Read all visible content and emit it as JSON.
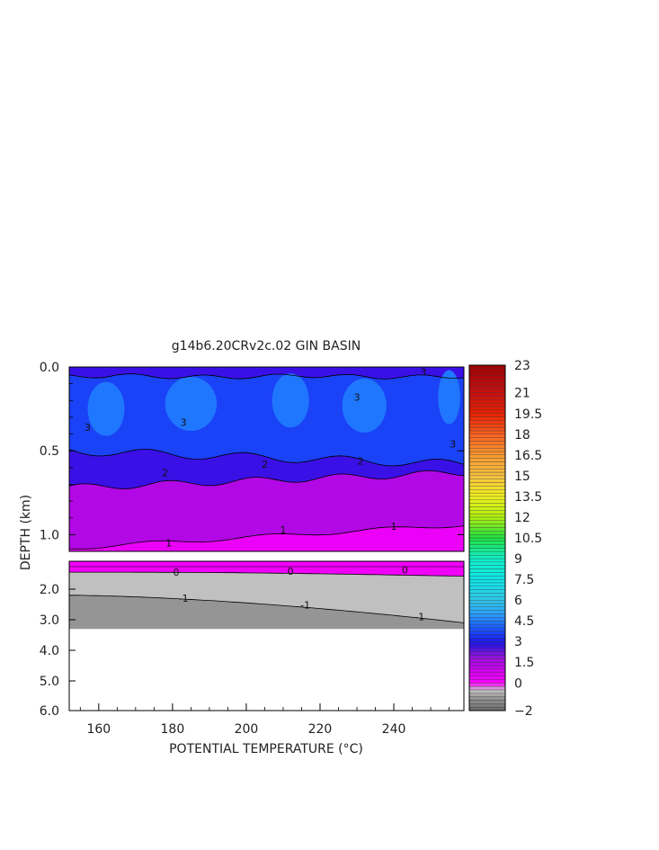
{
  "chart_data": {
    "type": "contour",
    "title": "g14b6.20CRv2c.02 GIN BASIN",
    "xlabel": "POTENTIAL TEMPERATURE (°C)",
    "ylabel": "DEPTH (km)",
    "x_ticks": [
      "160",
      "180",
      "200",
      "220",
      "240"
    ],
    "x_range": [
      152,
      259
    ],
    "upper_panel": {
      "y_range": [
        0.0,
        1.1
      ],
      "y_ticks": [
        "0.0",
        "0.5",
        "1.0"
      ],
      "contour_labels": [
        "3",
        "3",
        "3",
        "3",
        "3",
        "2",
        "2",
        "2",
        "1",
        "1",
        "1"
      ]
    },
    "lower_panel": {
      "y_range": [
        1.1,
        6.0
      ],
      "y_ticks": [
        "2.0",
        "3.0",
        "4.0",
        "5.0",
        "6.0"
      ],
      "contour_labels": [
        "0",
        "0",
        "0",
        "-1",
        "-1",
        "-1"
      ]
    },
    "colorbar": {
      "range": [
        -2,
        23
      ],
      "tick_labels": [
        "23",
        "21",
        "19.5",
        "18",
        "16.5",
        "15",
        "13.5",
        "12",
        "10.5",
        "9",
        "7.5",
        "6",
        "4.5",
        "3",
        "1.5",
        "0",
        "-2"
      ]
    }
  }
}
